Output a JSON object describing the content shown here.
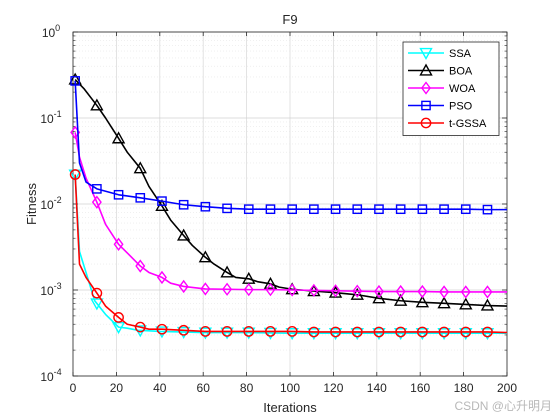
{
  "chart_data": {
    "type": "line",
    "title": "F9",
    "xlabel": "Iterations",
    "ylabel": "Fitness",
    "xlim": [
      0,
      200
    ],
    "ylim": [
      0.0001,
      1
    ],
    "yscale": "log",
    "grid": true,
    "minor_grid": true,
    "legend_position": "top-right",
    "x_ticks": [
      {
        "value": 0,
        "label": "0"
      },
      {
        "value": 20,
        "label": "20"
      },
      {
        "value": 40,
        "label": "40"
      },
      {
        "value": 60,
        "label": "60"
      },
      {
        "value": 80,
        "label": "80"
      },
      {
        "value": 100,
        "label": "100"
      },
      {
        "value": 120,
        "label": "120"
      },
      {
        "value": 140,
        "label": "140"
      },
      {
        "value": 160,
        "label": "160"
      },
      {
        "value": 180,
        "label": "180"
      },
      {
        "value": 200,
        "label": "200"
      }
    ],
    "y_ticks": [
      {
        "value": 0.0001,
        "base": "10",
        "exp": "-4"
      },
      {
        "value": 0.001,
        "base": "10",
        "exp": "-3"
      },
      {
        "value": 0.01,
        "base": "10",
        "exp": "-2"
      },
      {
        "value": 0.1,
        "base": "10",
        "exp": "-1"
      },
      {
        "value": 1,
        "base": "10",
        "exp": "0"
      }
    ],
    "series": [
      {
        "name": "SSA",
        "color": "#00ffff",
        "marker": "triangle-down",
        "x": [
          1,
          3,
          6,
          10,
          15,
          21,
          25,
          30,
          35,
          40,
          50,
          60,
          70,
          80,
          100,
          120,
          140,
          160,
          180,
          200
        ],
        "y": [
          0.022,
          0.0028,
          0.0016,
          0.00075,
          0.00052,
          0.00037,
          0.00036,
          0.00034,
          0.000335,
          0.00033,
          0.000325,
          0.00032,
          0.00032,
          0.00032,
          0.000315,
          0.000315,
          0.000315,
          0.000315,
          0.000315,
          0.000315
        ],
        "marker_x": [
          1,
          11,
          21,
          31,
          41,
          51,
          61,
          71,
          81,
          91,
          101,
          111,
          121,
          131,
          141,
          151,
          161,
          171,
          181,
          191
        ]
      },
      {
        "name": "BOA",
        "color": "#000000",
        "marker": "triangle-up",
        "x": [
          1,
          5,
          11,
          15,
          21,
          25,
          31,
          35,
          41,
          45,
          51,
          55,
          61,
          65,
          71,
          75,
          81,
          85,
          91,
          95,
          101,
          111,
          121,
          131,
          141,
          151,
          161,
          171,
          181,
          191,
          200
        ],
        "y": [
          0.28,
          0.22,
          0.14,
          0.1,
          0.058,
          0.04,
          0.026,
          0.016,
          0.0095,
          0.0065,
          0.0043,
          0.0033,
          0.0024,
          0.002,
          0.0016,
          0.0014,
          0.00135,
          0.00125,
          0.00118,
          0.00108,
          0.00102,
          0.00097,
          0.00093,
          0.00088,
          0.0008,
          0.00075,
          0.00072,
          0.0007,
          0.00068,
          0.00066,
          0.00065
        ],
        "marker_x": [
          1,
          11,
          21,
          31,
          41,
          51,
          61,
          71,
          81,
          91,
          101,
          111,
          121,
          131,
          141,
          151,
          161,
          171,
          181,
          191
        ]
      },
      {
        "name": "WOA",
        "color": "#ff00ff",
        "marker": "diamond",
        "x": [
          1,
          3,
          6,
          11,
          15,
          21,
          25,
          31,
          35,
          41,
          45,
          51,
          61,
          71,
          81,
          91,
          101,
          111,
          121,
          131,
          141,
          151,
          161,
          171,
          181,
          191,
          200
        ],
        "y": [
          0.068,
          0.035,
          0.02,
          0.0105,
          0.0058,
          0.0034,
          0.0027,
          0.0019,
          0.0016,
          0.0014,
          0.0012,
          0.0011,
          0.00103,
          0.00102,
          0.00101,
          0.00101,
          0.001,
          0.00099,
          0.00098,
          0.00097,
          0.00096,
          0.00096,
          0.00096,
          0.00095,
          0.00095,
          0.00095,
          0.00095
        ],
        "marker_x": [
          1,
          11,
          21,
          31,
          41,
          51,
          61,
          71,
          81,
          91,
          101,
          111,
          121,
          131,
          141,
          151,
          161,
          171,
          181,
          191
        ]
      },
      {
        "name": "PSO",
        "color": "#0000ff",
        "marker": "square",
        "x": [
          1,
          3,
          6,
          11,
          21,
          31,
          41,
          51,
          61,
          71,
          81,
          91,
          101,
          111,
          121,
          131,
          141,
          151,
          161,
          171,
          181,
          191,
          200
        ],
        "y": [
          0.27,
          0.03,
          0.018,
          0.015,
          0.0128,
          0.0118,
          0.0108,
          0.0098,
          0.0093,
          0.0089,
          0.0087,
          0.0087,
          0.0087,
          0.0087,
          0.0087,
          0.0087,
          0.0087,
          0.0087,
          0.0087,
          0.0087,
          0.0087,
          0.0086,
          0.0086
        ],
        "marker_x": [
          1,
          11,
          21,
          31,
          41,
          51,
          61,
          71,
          81,
          91,
          101,
          111,
          121,
          131,
          141,
          151,
          161,
          171,
          181,
          191
        ]
      },
      {
        "name": "t-GSSA",
        "color": "#ff0000",
        "marker": "circle",
        "x": [
          1,
          3,
          6,
          11,
          15,
          21,
          25,
          31,
          35,
          41,
          51,
          61,
          71,
          81,
          91,
          101,
          111,
          121,
          131,
          141,
          151,
          161,
          171,
          181,
          191,
          200
        ],
        "y": [
          0.022,
          0.002,
          0.0014,
          0.00092,
          0.00065,
          0.00048,
          0.0004,
          0.00037,
          0.00035,
          0.00035,
          0.00034,
          0.00033,
          0.00033,
          0.00033,
          0.00033,
          0.00033,
          0.000325,
          0.000325,
          0.000325,
          0.000325,
          0.000325,
          0.000325,
          0.000325,
          0.000325,
          0.000325,
          0.00032
        ],
        "marker_x": [
          1,
          11,
          21,
          31,
          41,
          51,
          61,
          71,
          81,
          91,
          101,
          111,
          121,
          131,
          141,
          151,
          161,
          171,
          181,
          191
        ]
      }
    ]
  },
  "watermark": "CSDN @心升明月"
}
